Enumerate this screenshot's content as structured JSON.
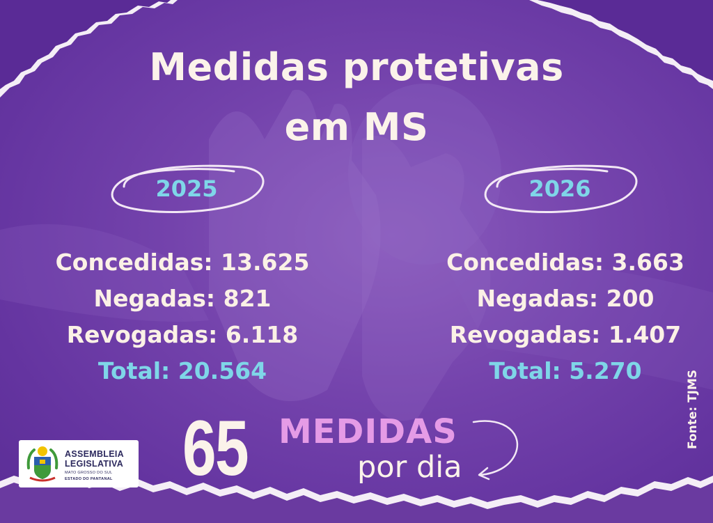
{
  "title": {
    "line1": "Medidas protetivas",
    "line2": "em MS"
  },
  "columns": [
    {
      "year": "2025",
      "concedidas": "Concedidas: 13.625",
      "negadas": "Negadas: 821",
      "revogadas": "Revogadas: 6.118",
      "total": "Total: 20.564"
    },
    {
      "year": "2026",
      "concedidas": "Concedidas: 3.663",
      "negadas": "Negadas: 200",
      "revogadas": "Revogadas: 1.407",
      "total": "Total: 5.270"
    }
  ],
  "highlight": {
    "number": "65",
    "word": "MEDIDAS",
    "suffix": "por dia"
  },
  "logo": {
    "line1": "ASSEMBLEIA",
    "line2": "LEGISLATIVA",
    "line3": "MATO GROSSO DO SUL",
    "line4": "ESTADO DO PANTANAL"
  },
  "source": "Fonte: TJMS",
  "colors": {
    "background": "#6a3aa0",
    "title_text": "#fbf3ea",
    "accent_cyan": "#7fd6e8",
    "accent_pink": "#e59be6"
  },
  "icons": {
    "year_oval": "hand-drawn-oval",
    "arrow": "curved-arrow-icon",
    "emblem": "state-coat-of-arms-icon"
  }
}
